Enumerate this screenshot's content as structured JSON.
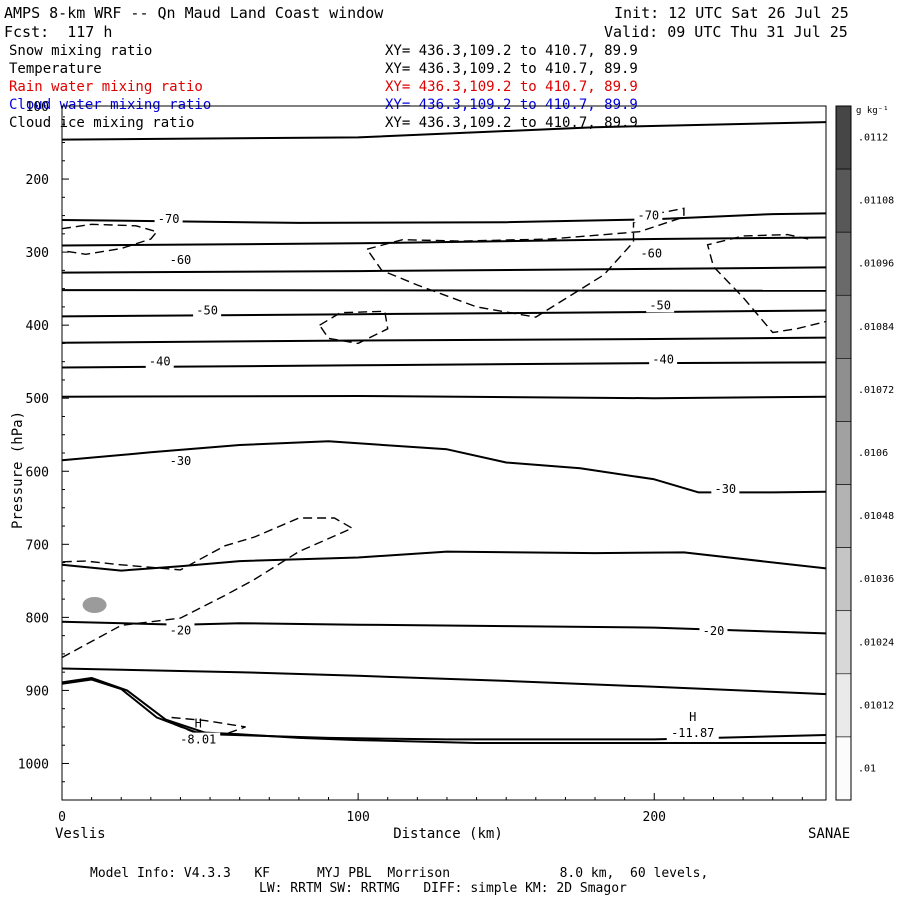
{
  "header": {
    "title": "AMPS 8-km WRF -- Qn Maud Land Coast window",
    "forecast": "Fcst:  117 h",
    "init": "Init: 12 UTC Sat 26 Jul 25",
    "valid": "Valid: 09 UTC Thu 31 Jul 25"
  },
  "fields": [
    {
      "label": "Snow mixing ratio",
      "xy": "XY= 436.3,109.2 to 410.7, 89.9",
      "color": "#000000"
    },
    {
      "label": "Temperature",
      "xy": "XY= 436.3,109.2 to 410.7, 89.9",
      "color": "#000000"
    },
    {
      "label": "Rain water mixing ratio",
      "xy": "XY= 436.3,109.2 to 410.7, 89.9",
      "color": "#e00000"
    },
    {
      "label": "Cloud water mixing ratio",
      "xy": "XY= 436.3,109.2 to 410.7, 89.9",
      "color": "#0000e0"
    },
    {
      "label": "Cloud ice mixing ratio",
      "xy": "XY= 436.3,109.2 to 410.7, 89.9",
      "color": "#000000"
    }
  ],
  "footer": {
    "line1": "Model Info: V4.3.3   KF      MYJ PBL  Morrison              8.0 km,  60 levels,",
    "line2": "LW: RRTM SW: RRTMG   DIFF: simple KM: 2D Smagor"
  },
  "chart_data": {
    "type": "cross-section",
    "xlabel": "Distance (km)",
    "ylabel": "Pressure (hPa)",
    "xlim": [
      0,
      258
    ],
    "ylim": [
      1050,
      100
    ],
    "x_ticks": [
      0,
      100,
      200
    ],
    "y_ticks": [
      100,
      200,
      300,
      400,
      500,
      600,
      700,
      800,
      900,
      1000
    ],
    "x_endpoints": {
      "left": "Veslis",
      "right": "SANAE"
    },
    "colorbar": {
      "unit": "g kg⁻¹",
      "labels": [
        ".0112",
        ".01108",
        ".01096",
        ".01084",
        ".01072",
        ".0106",
        ".01048",
        ".01036",
        ".01024",
        ".01012",
        ".01"
      ]
    },
    "temperature_labels": [
      {
        "text": "-70",
        "x": 36,
        "p": 255
      },
      {
        "text": "-70",
        "x": 198,
        "p": 250
      },
      {
        "text": "-60",
        "x": 40,
        "p": 311
      },
      {
        "text": "-60",
        "x": 199,
        "p": 302
      },
      {
        "text": "-50",
        "x": 49,
        "p": 380
      },
      {
        "text": "-50",
        "x": 202,
        "p": 373
      },
      {
        "text": "-40",
        "x": 33,
        "p": 450
      },
      {
        "text": "-40",
        "x": 203,
        "p": 447
      },
      {
        "text": "-30",
        "x": 40,
        "p": 586
      },
      {
        "text": "-30",
        "x": 224,
        "p": 624
      },
      {
        "text": "-20",
        "x": 40,
        "p": 818
      },
      {
        "text": "-20",
        "x": 220,
        "p": 819
      }
    ],
    "highs": [
      {
        "label": "H",
        "value": "-8.01",
        "x": 46,
        "p": 955
      },
      {
        "label": "H",
        "value": "-11.87",
        "x": 213,
        "p": 946
      }
    ],
    "temperature_isotherms": [
      [
        [
          0,
          146
        ],
        [
          100,
          143
        ],
        [
          180,
          129
        ],
        [
          258,
          122
        ]
      ],
      [
        [
          0,
          256
        ],
        [
          80,
          260
        ],
        [
          150,
          259
        ],
        [
          200,
          255
        ],
        [
          240,
          248
        ],
        [
          258,
          247
        ]
      ],
      [
        [
          0,
          291
        ],
        [
          100,
          288
        ],
        [
          200,
          282
        ],
        [
          258,
          280
        ]
      ],
      [
        [
          0,
          328
        ],
        [
          100,
          326
        ],
        [
          200,
          323
        ],
        [
          258,
          321
        ]
      ],
      [
        [
          0,
          352
        ],
        [
          258,
          353
        ]
      ],
      [
        [
          0,
          388
        ],
        [
          100,
          385
        ],
        [
          200,
          382
        ],
        [
          258,
          380
        ]
      ],
      [
        [
          0,
          424
        ],
        [
          100,
          421
        ],
        [
          200,
          419
        ],
        [
          258,
          417
        ]
      ],
      [
        [
          0,
          458
        ],
        [
          100,
          455
        ],
        [
          200,
          452
        ],
        [
          258,
          451
        ]
      ],
      [
        [
          0,
          498
        ],
        [
          100,
          497
        ],
        [
          200,
          500
        ],
        [
          258,
          498
        ]
      ],
      [
        [
          0,
          585
        ],
        [
          30,
          574
        ],
        [
          60,
          564
        ],
        [
          90,
          559
        ],
        [
          130,
          570
        ],
        [
          150,
          588
        ],
        [
          175,
          596
        ],
        [
          200,
          611
        ],
        [
          215,
          629
        ],
        [
          240,
          629
        ],
        [
          258,
          628
        ]
      ],
      [
        [
          0,
          728
        ],
        [
          20,
          736
        ],
        [
          40,
          730
        ],
        [
          60,
          723
        ],
        [
          100,
          718
        ],
        [
          130,
          710
        ],
        [
          180,
          712
        ],
        [
          210,
          711
        ],
        [
          258,
          733
        ]
      ],
      [
        [
          0,
          806
        ],
        [
          40,
          810
        ],
        [
          60,
          808
        ],
        [
          100,
          810
        ],
        [
          150,
          812
        ],
        [
          200,
          814
        ],
        [
          258,
          822
        ]
      ],
      [
        [
          0,
          870
        ],
        [
          60,
          875
        ],
        [
          100,
          880
        ],
        [
          150,
          887
        ],
        [
          200,
          895
        ],
        [
          258,
          905
        ]
      ],
      [
        [
          0,
          891
        ],
        [
          10,
          885
        ],
        [
          20,
          898
        ],
        [
          32,
          937
        ],
        [
          45,
          957
        ],
        [
          60,
          960
        ],
        [
          80,
          965
        ],
        [
          100,
          968
        ],
        [
          140,
          972
        ],
        [
          180,
          972
        ],
        [
          258,
          972
        ]
      ],
      [
        [
          0,
          889
        ],
        [
          10,
          883
        ],
        [
          22,
          900
        ],
        [
          35,
          940
        ],
        [
          50,
          960
        ],
        [
          90,
          965
        ],
        [
          130,
          967
        ],
        [
          200,
          967
        ],
        [
          258,
          961
        ]
      ]
    ],
    "snow_contours": [
      [
        [
          0,
          268
        ],
        [
          10,
          262
        ],
        [
          25,
          264
        ],
        [
          32,
          272
        ],
        [
          30,
          282
        ],
        [
          20,
          295
        ],
        [
          8,
          303
        ],
        [
          0,
          298
        ]
      ],
      [
        [
          103,
          296
        ],
        [
          115,
          283
        ],
        [
          135,
          285
        ],
        [
          165,
          282
        ],
        [
          195,
          272
        ],
        [
          210,
          252
        ],
        [
          210,
          240
        ],
        [
          200,
          248
        ],
        [
          193,
          260
        ],
        [
          193,
          286
        ],
        [
          183,
          331
        ],
        [
          160,
          389
        ],
        [
          140,
          375
        ],
        [
          120,
          345
        ],
        [
          108,
          325
        ],
        [
          103,
          296
        ]
      ],
      [
        [
          252,
          282
        ],
        [
          245,
          276
        ],
        [
          230,
          278
        ],
        [
          218,
          290
        ],
        [
          220,
          320
        ],
        [
          230,
          362
        ],
        [
          240,
          410
        ],
        [
          248,
          405
        ],
        [
          258,
          395
        ]
      ],
      [
        [
          87,
          400
        ],
        [
          94,
          383
        ],
        [
          109,
          381
        ],
        [
          110,
          405
        ],
        [
          100,
          425
        ],
        [
          90,
          418
        ],
        [
          87,
          400
        ]
      ],
      [
        [
          0,
          855
        ],
        [
          20,
          811
        ],
        [
          40,
          801
        ],
        [
          55,
          770
        ],
        [
          65,
          748
        ],
        [
          80,
          710
        ],
        [
          98,
          678
        ],
        [
          92,
          664
        ],
        [
          80,
          664
        ],
        [
          65,
          690
        ],
        [
          55,
          702
        ],
        [
          40,
          735
        ],
        [
          20,
          728
        ],
        [
          8,
          723
        ],
        [
          0,
          724
        ]
      ],
      [
        [
          37,
          937
        ],
        [
          48,
          941
        ],
        [
          62,
          950
        ],
        [
          55,
          960
        ],
        [
          45,
          958
        ],
        [
          37,
          945
        ]
      ]
    ],
    "shaded_cell": {
      "x": 11,
      "p": 783
    }
  }
}
